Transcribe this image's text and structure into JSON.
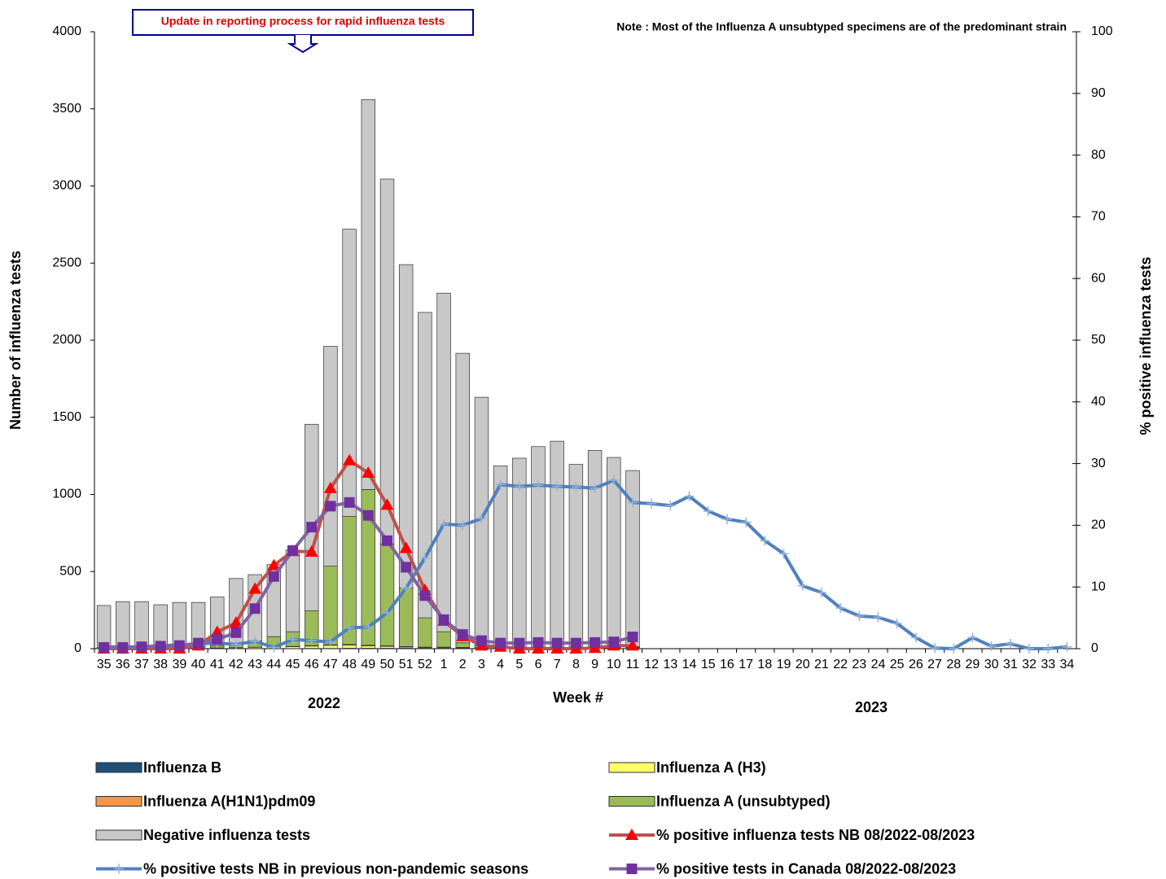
{
  "chart_data": {
    "type": "bar",
    "stacked": true,
    "annotation": "Update in reporting process for rapid influenza tests",
    "note": "Note :  Most of the  Influenza A unsubtyped specimens are of the predominant strain",
    "x_label": "Week #",
    "y_label": "Number of influenza tests",
    "y2_label": "% positive influenza tests",
    "year_labels": [
      "2022",
      "2023"
    ],
    "categories": [
      "35",
      "36",
      "37",
      "38",
      "39",
      "40",
      "41",
      "42",
      "43",
      "44",
      "45",
      "46",
      "47",
      "48",
      "49",
      "50",
      "51",
      "52",
      "1",
      "2",
      "3",
      "4",
      "5",
      "6",
      "7",
      "8",
      "9",
      "10",
      "11",
      "12",
      "13",
      "14",
      "15",
      "16",
      "17",
      "18",
      "19",
      "20",
      "21",
      "22",
      "23",
      "24",
      "25",
      "26",
      "27",
      "28",
      "29",
      "30",
      "31",
      "32",
      "33",
      "34"
    ],
    "ylim": [
      0,
      4000
    ],
    "yticks": [
      0,
      500,
      1000,
      1500,
      2000,
      2500,
      3000,
      3500,
      4000
    ],
    "y2lim": [
      0,
      100
    ],
    "y2ticks": [
      0,
      10,
      20,
      30,
      40,
      50,
      60,
      70,
      80,
      90,
      100
    ],
    "grid": false,
    "legend_columns": 2,
    "series": [
      {
        "name": "Influenza B",
        "type": "bar",
        "color": "#1f4e79",
        "values": [
          1,
          1,
          1,
          1,
          1,
          1,
          1,
          1,
          1,
          1,
          1,
          2,
          2,
          3,
          3,
          3,
          3,
          3,
          3,
          3,
          3,
          3,
          3,
          3,
          3,
          4,
          4,
          5,
          6,
          null,
          null,
          null,
          null,
          null,
          null,
          null,
          null,
          null,
          null,
          null,
          null,
          null,
          null,
          null,
          null,
          null,
          null,
          null,
          null,
          null,
          null,
          null
        ]
      },
      {
        "name": "Influenza A (H3)",
        "type": "bar",
        "color": "#ffff66",
        "values": [
          1,
          1,
          1,
          1,
          1,
          2,
          3,
          5,
          8,
          10,
          12,
          15,
          20,
          20,
          15,
          12,
          8,
          5,
          5,
          3,
          2,
          1,
          1,
          1,
          1,
          1,
          1,
          1,
          1,
          null,
          null,
          null,
          null,
          null,
          null,
          null,
          null,
          null,
          null,
          null,
          null,
          null,
          null,
          null,
          null,
          null,
          null,
          null,
          null,
          null,
          null,
          null
        ]
      },
      {
        "name": "Influenza A(H1N1)pdm09",
        "type": "bar",
        "color": "#f79646",
        "values": [
          0,
          0,
          0,
          0,
          0,
          0,
          1,
          1,
          1,
          2,
          2,
          3,
          3,
          4,
          4,
          4,
          3,
          2,
          2,
          2,
          1,
          1,
          1,
          1,
          1,
          1,
          1,
          1,
          1,
          null,
          null,
          null,
          null,
          null,
          null,
          null,
          null,
          null,
          null,
          null,
          null,
          null,
          null,
          null,
          null,
          null,
          null,
          null,
          null,
          null,
          null,
          null
        ]
      },
      {
        "name": "Influenza A (unsubtyped)",
        "type": "bar",
        "color": "#9bbb59",
        "values": [
          5,
          5,
          5,
          5,
          5,
          10,
          15,
          25,
          40,
          65,
          95,
          225,
          510,
          830,
          1010,
          660,
          380,
          190,
          100,
          30,
          15,
          8,
          5,
          5,
          5,
          5,
          5,
          5,
          5,
          null,
          null,
          null,
          null,
          null,
          null,
          null,
          null,
          null,
          null,
          null,
          null,
          null,
          null,
          null,
          null,
          null,
          null,
          null,
          null,
          null,
          null,
          null
        ]
      },
      {
        "name": "Negative influenza tests",
        "type": "bar",
        "color": "#c8c8c8",
        "values": [
          273,
          298,
          298,
          278,
          293,
          287,
          315,
          423,
          430,
          467,
          530,
          1210,
          1425,
          1863,
          2528,
          2366,
          2096,
          1980,
          2195,
          1877,
          1609,
          1172,
          1225,
          1300,
          1335,
          1184,
          1274,
          1228,
          1142,
          null,
          null,
          null,
          null,
          null,
          null,
          null,
          null,
          null,
          null,
          null,
          null,
          null,
          null,
          null,
          null,
          null,
          null,
          null,
          null,
          null,
          null,
          null
        ]
      },
      {
        "name": "% positive influenza tests NB 08/2022-08/2023",
        "type": "line",
        "axis": "y2",
        "color": "#c0504d",
        "marker": "triangle",
        "marker_color": "#ff0000",
        "values": [
          0,
          0,
          0,
          0,
          0,
          0.5,
          2.7,
          4.2,
          9.7,
          13.5,
          15.8,
          15.7,
          26,
          30.5,
          28.5,
          23.3,
          16.3,
          9.5,
          4.5,
          2,
          0.5,
          0.3,
          0,
          0,
          0,
          0,
          0.1,
          0.5,
          0.5,
          null,
          null,
          null,
          null,
          null,
          null,
          null,
          null,
          null,
          null,
          null,
          null,
          null,
          null,
          null,
          null,
          null,
          null,
          null,
          null,
          null,
          null,
          null
        ]
      },
      {
        "name": "% positive tests NB in previous non-pandemic seasons",
        "type": "line",
        "axis": "y2",
        "color": "#4f81bd",
        "marker": "plus",
        "marker_color": "#95b3d7",
        "values": [
          0.3,
          0.3,
          0.3,
          0.5,
          0.6,
          0.8,
          0.9,
          0.7,
          1.2,
          0.2,
          1.5,
          1.3,
          1.1,
          3.4,
          3.5,
          5.8,
          9.8,
          14.7,
          20.2,
          20,
          21.1,
          26.6,
          26.3,
          26.5,
          26.3,
          26.2,
          26,
          27.3,
          23.7,
          23.5,
          23.2,
          24.7,
          22.3,
          21,
          20.5,
          17.5,
          15.4,
          10.2,
          9.1,
          6.6,
          5.3,
          5.1,
          4.1,
          1.8,
          0.1,
          0,
          1.8,
          0.4,
          0.8,
          0,
          0,
          0.3
        ]
      },
      {
        "name": "% positive tests  in Canada 08/2022-08/2023",
        "type": "line",
        "axis": "y2",
        "color": "#8064a2",
        "marker": "square",
        "marker_color": "#7030a0",
        "values": [
          0.2,
          0.2,
          0.3,
          0.4,
          0.5,
          0.9,
          1.5,
          2.6,
          6.5,
          11.7,
          15.9,
          19.7,
          23.1,
          23.7,
          21.6,
          17.5,
          13.2,
          8.6,
          4.7,
          2.3,
          1.3,
          0.9,
          0.9,
          1,
          0.9,
          0.9,
          1,
          1.1,
          1.9,
          null,
          null,
          null,
          null,
          null,
          null,
          null,
          null,
          null,
          null,
          null,
          null,
          null,
          null,
          null,
          null,
          null,
          null,
          null,
          null,
          null,
          null,
          null
        ]
      }
    ]
  }
}
